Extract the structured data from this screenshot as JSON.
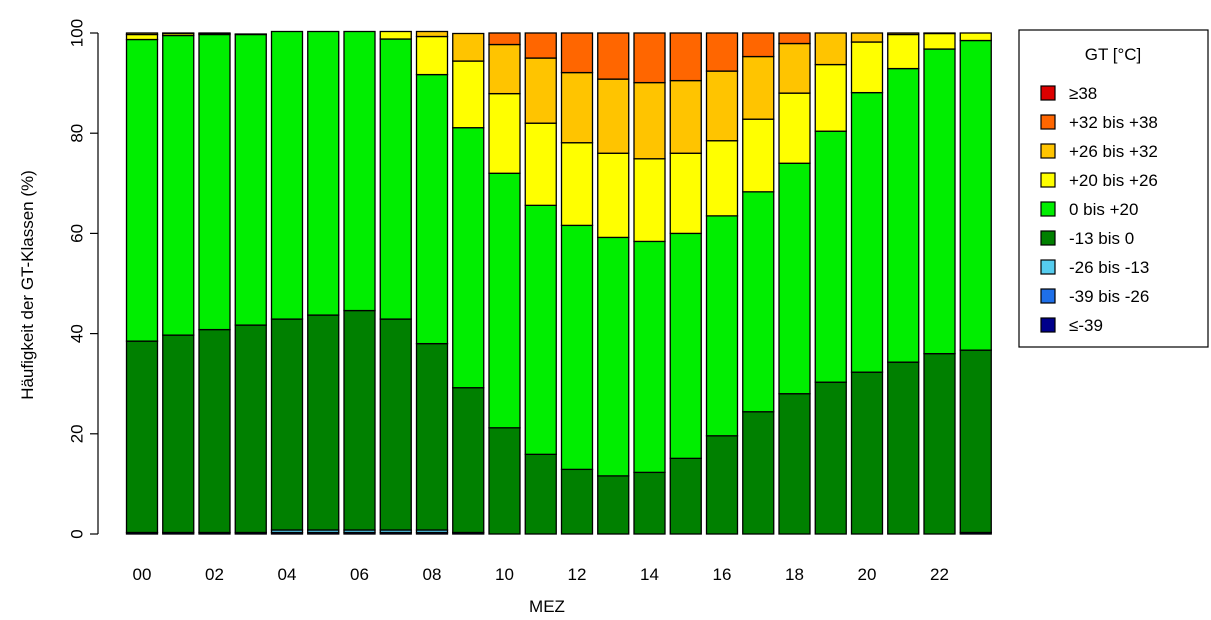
{
  "chart_data": {
    "type": "bar",
    "stacked": true,
    "xlabel": "MEZ",
    "ylabel": "Häufigkeit der GT-Klassen (%)",
    "ylim": [
      0,
      100
    ],
    "yticks": [
      "0",
      "20",
      "40",
      "60",
      "80",
      "100"
    ],
    "categories": [
      "00",
      "01",
      "02",
      "03",
      "04",
      "05",
      "06",
      "07",
      "08",
      "09",
      "10",
      "11",
      "12",
      "13",
      "14",
      "15",
      "16",
      "17",
      "18",
      "19",
      "20",
      "21",
      "22",
      "23"
    ],
    "x_tick_labels": [
      "00",
      "02",
      "04",
      "06",
      "08",
      "10",
      "12",
      "14",
      "16",
      "18",
      "20",
      "22"
    ],
    "legend": {
      "title": "GT [°C]",
      "position": "right"
    },
    "series": [
      {
        "name": "≤-39",
        "color": "#00008b",
        "values": [
          0.3,
          0.3,
          0.3,
          0.3,
          0.3,
          0.3,
          0.3,
          0.3,
          0.3,
          0.3,
          0,
          0,
          0,
          0,
          0,
          0,
          0,
          0,
          0,
          0,
          0,
          0,
          0,
          0.3
        ]
      },
      {
        "name": "-39 bis -26",
        "color": "#1e6fe8",
        "values": [
          0,
          0,
          0,
          0,
          0,
          0,
          0,
          0,
          0,
          0,
          0,
          0,
          0,
          0,
          0,
          0,
          0,
          0,
          0,
          0,
          0,
          0,
          0,
          0
        ]
      },
      {
        "name": "-26 bis -13",
        "color": "#55ccee",
        "values": [
          0,
          0,
          0,
          0,
          0.5,
          0.5,
          0.5,
          0.5,
          0.5,
          0,
          0,
          0,
          0,
          0,
          0,
          0,
          0,
          0,
          0,
          0,
          0,
          0,
          0,
          0
        ]
      },
      {
        "name": "-13 bis 0",
        "color": "#008000",
        "values": [
          38.2,
          39.4,
          40.5,
          41.4,
          42.1,
          42.9,
          43.8,
          42.1,
          37.2,
          28.9,
          21.2,
          15.9,
          12.9,
          11.6,
          12.3,
          15.1,
          19.6,
          24.4,
          28.0,
          30.3,
          32.3,
          34.3,
          36.0,
          36.4
        ]
      },
      {
        "name": "0 bis +20",
        "color": "#00ee00",
        "values": [
          60.2,
          59.8,
          58.9,
          58.0,
          57.4,
          56.6,
          55.7,
          55.9,
          53.7,
          51.9,
          50.8,
          49.7,
          48.7,
          47.6,
          46.1,
          44.9,
          43.9,
          43.9,
          46.0,
          50.1,
          55.8,
          58.6,
          60.8,
          61.8
        ]
      },
      {
        "name": "+20 bis +26",
        "color": "#ffff00",
        "values": [
          1.0,
          0.4,
          0.2,
          0.1,
          0,
          0,
          0,
          1.5,
          7.6,
          13.3,
          15.9,
          16.4,
          16.5,
          16.8,
          16.5,
          16.0,
          15.0,
          14.5,
          14.0,
          13.3,
          10.1,
          6.8,
          3.1,
          1.5
        ]
      },
      {
        "name": "+26 bis +32",
        "color": "#ffc400",
        "values": [
          0.3,
          0.1,
          0.1,
          0,
          0,
          0,
          0,
          0,
          1.0,
          5.5,
          9.8,
          13.0,
          14.0,
          14.8,
          15.2,
          14.5,
          13.9,
          12.5,
          9.9,
          6.3,
          1.8,
          0.3,
          0.1,
          0
        ]
      },
      {
        "name": "+32 bis +38",
        "color": "#ff6600",
        "values": [
          0,
          0,
          0,
          0,
          0,
          0,
          0,
          0,
          0,
          0,
          2.3,
          5.0,
          7.9,
          9.2,
          9.9,
          9.5,
          7.6,
          4.7,
          2.1,
          0,
          0,
          0,
          0,
          0
        ]
      },
      {
        "name": "≥38",
        "color": "#dd0000",
        "values": [
          0,
          0,
          0,
          0,
          0,
          0,
          0,
          0,
          0,
          0,
          0,
          0,
          0,
          0,
          0,
          0,
          0,
          0,
          0,
          0,
          0,
          0,
          0,
          0
        ]
      }
    ]
  }
}
